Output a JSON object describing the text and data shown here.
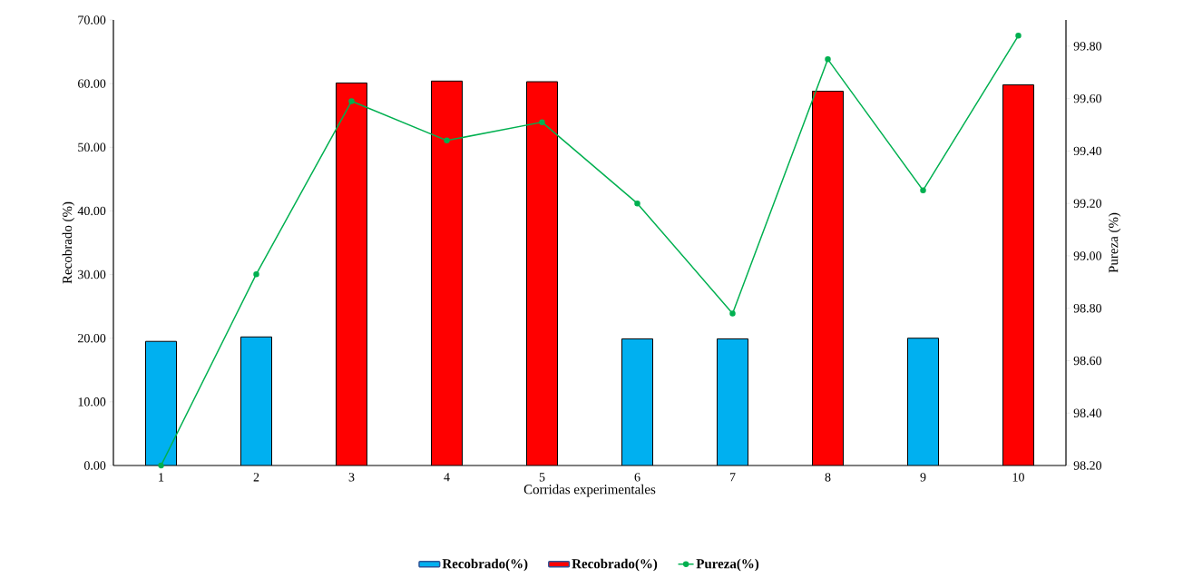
{
  "chart_data": {
    "type": "bar",
    "xlabel": "Corridas experimentales",
    "ylabel": "Recobrado (%)",
    "y2label": "Pureza (%)",
    "categories": [
      "1",
      "2",
      "3",
      "4",
      "5",
      "6",
      "7",
      "8",
      "9",
      "10"
    ],
    "ylim": [
      0,
      70
    ],
    "yticks": [
      {
        "value": 0,
        "label": "0.00"
      },
      {
        "value": 10,
        "label": "10.00"
      },
      {
        "value": 20,
        "label": "20.00"
      },
      {
        "value": 30,
        "label": "30.00"
      },
      {
        "value": 40,
        "label": "40.00"
      },
      {
        "value": 50,
        "label": "50.00"
      },
      {
        "value": 60,
        "label": "60.00"
      },
      {
        "value": 70,
        "label": "70.00"
      }
    ],
    "y2lim": [
      98.2,
      99.9
    ],
    "y2ticks": [
      {
        "value": 98.2,
        "label": "98.20"
      },
      {
        "value": 98.4,
        "label": "98.40"
      },
      {
        "value": 98.6,
        "label": "98.60"
      },
      {
        "value": 98.8,
        "label": "98.80"
      },
      {
        "value": 99.0,
        "label": "99.00"
      },
      {
        "value": 99.2,
        "label": "99.20"
      },
      {
        "value": 99.4,
        "label": "99.40"
      },
      {
        "value": 99.6,
        "label": "99.60"
      },
      {
        "value": 99.8,
        "label": "99.80"
      }
    ],
    "legend": "bottom",
    "series": [
      {
        "name": "Recobrado(%)",
        "color": "#00b0f0",
        "values": [
          19.5,
          20.2,
          null,
          null,
          null,
          19.9,
          19.9,
          null,
          20.0,
          null
        ]
      },
      {
        "name": "Recobrado(%)",
        "color": "#ff0000",
        "values": [
          null,
          null,
          60.1,
          60.4,
          60.3,
          null,
          null,
          58.8,
          null,
          59.8
        ]
      },
      {
        "name": "Pureza(%)",
        "type": "line",
        "axis": "y2",
        "marker": "circle",
        "color": "#00b050",
        "values": [
          98.2,
          98.93,
          99.59,
          99.44,
          99.51,
          99.2,
          98.78,
          99.75,
          99.25,
          99.84
        ]
      }
    ]
  }
}
